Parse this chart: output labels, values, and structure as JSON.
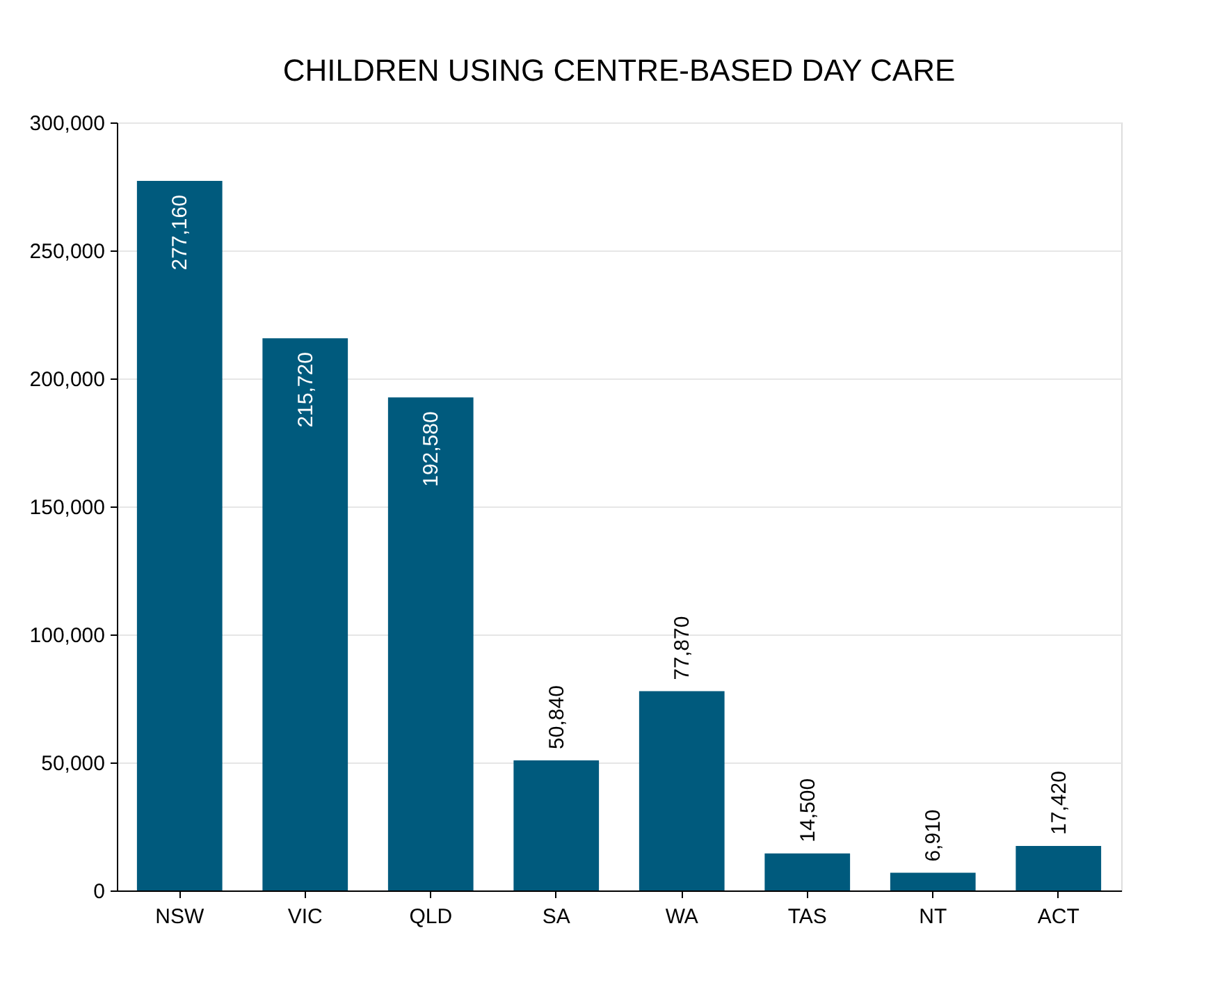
{
  "chart_data": {
    "type": "bar",
    "title": "CHILDREN USING CENTRE-BASED DAY CARE",
    "categories": [
      "NSW",
      "VIC",
      "QLD",
      "SA",
      "WA",
      "TAS",
      "NT",
      "ACT"
    ],
    "values": [
      277160,
      215720,
      192580,
      50840,
      77870,
      14500,
      6910,
      17420
    ],
    "value_labels": [
      "277,160",
      "215,720",
      "192,580",
      "50,840",
      "77,870",
      "14,500",
      "6,910",
      "17,420"
    ],
    "color": "#005a7d",
    "ylim": [
      0,
      300000
    ],
    "yticks": [
      {
        "value": 0,
        "label": "0"
      },
      {
        "value": 50000,
        "label": "50,000"
      },
      {
        "value": 100000,
        "label": "100,000"
      },
      {
        "value": 150000,
        "label": "150,000"
      },
      {
        "value": 200000,
        "label": "200,000"
      },
      {
        "value": 250000,
        "label": "250,000"
      },
      {
        "value": 300000,
        "label": "300,000"
      }
    ],
    "grid": "y"
  }
}
